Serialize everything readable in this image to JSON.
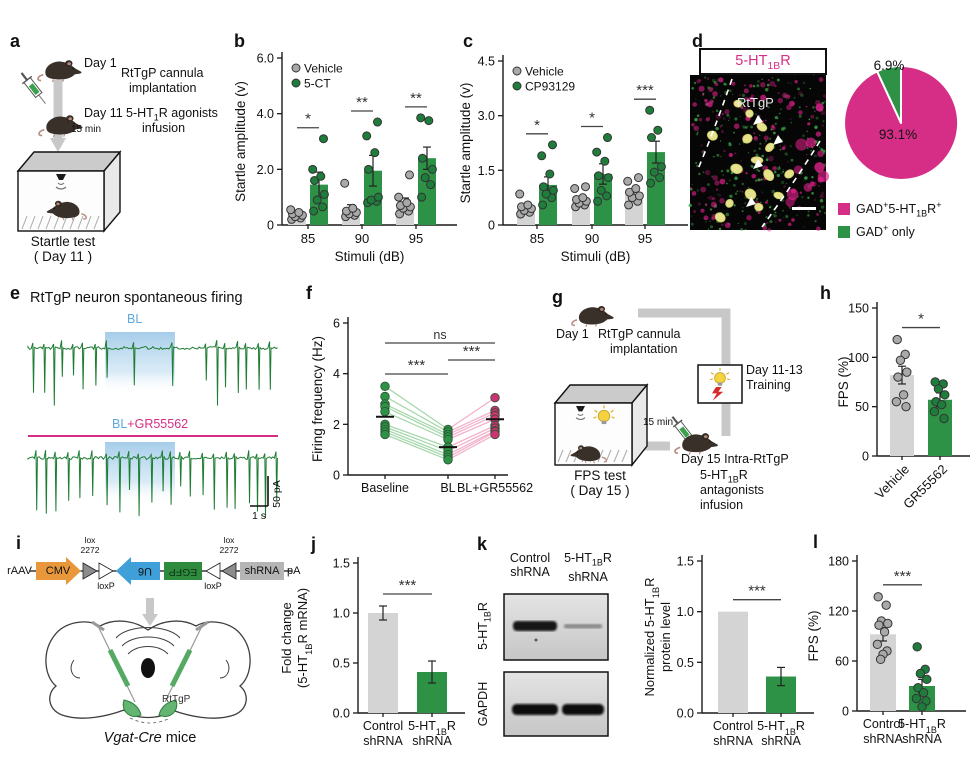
{
  "colors": {
    "magenta": "#d62e87",
    "green": "#2e9246",
    "gray_bar": "#d4d4d4",
    "gray_dot": "#a9a9a9",
    "green_dot": "#1f7d3c",
    "blue_label": "#5da9dd",
    "trace_green": "#1e7d33",
    "orange": "#e8973a",
    "blue_u6": "#3f9fd8",
    "egfp_green": "#2e8b3d",
    "axis": "#1a1a1a"
  },
  "panels": {
    "a": {
      "label": "a",
      "day1": "Day 1",
      "day1_desc_1": "RtTgP cannula",
      "day1_desc_2": "implantation",
      "day11": "Day 11",
      "day11_desc_1": "5-HT~1~R agonists",
      "day11_desc_2": "infusion",
      "delay": "15 min",
      "caption_1": "Startle test",
      "caption_2": "( Day 11 )"
    },
    "b": {
      "label": "b"
    },
    "c": {
      "label": "c"
    },
    "d": {
      "label": "d",
      "title": "5-HT~1B~R",
      "region": "RtTgP"
    },
    "e": {
      "label": "e"
    },
    "f": {
      "label": "f"
    },
    "g": {
      "label": "g",
      "day1": "Day 1",
      "day1_desc_1": "RtTgP cannula",
      "day1_desc_2": "implantation",
      "training_1": "Day 11-13",
      "training_2": "Training",
      "delay": "15 min",
      "day15": "Day 15",
      "day15_desc_1": "Intra-RtTgP",
      "day15_desc_2": "5-HT~1B~R",
      "day15_desc_3": "antagonists",
      "day15_desc_4": "infusion",
      "caption_1": "FPS test",
      "caption_2": "( Day 15 )"
    },
    "h": {
      "label": "h"
    },
    "i": {
      "label": "i",
      "raav": "rAAV",
      "cmv": "CMV",
      "lox_1": "lox",
      "lox_2": "2272",
      "loxp": "loxP",
      "u6": "U6",
      "egfp": "EGFP",
      "shrna": "shRNA",
      "pa": "pA",
      "region": "RtTgP",
      "caption": "*Vgat-Cre* mice"
    },
    "j": {
      "label": "j"
    },
    "k": {
      "label": "k",
      "col_1a": "Control",
      "col_1b": "shRNA",
      "col_2a": "5-HT~1B~R",
      "col_2b": "shRNA",
      "row_1": "5-HT~1B~R",
      "row_2": "GAPDH"
    },
    "l": {
      "label": "l"
    }
  },
  "chart_data": {
    "b": {
      "type": "bar",
      "variant": "grouped",
      "ylabel": "Startle amplitude (v)",
      "xlabel": "Stimuli (dB)",
      "categories": [
        "85",
        "90",
        "95"
      ],
      "ylim": [
        0,
        6
      ],
      "yticks": [
        {
          "v": 0,
          "label": "0"
        },
        {
          "v": 2,
          "label": "2.0"
        },
        {
          "v": 4,
          "label": "4.0"
        },
        {
          "v": 6,
          "label": "6.0"
        }
      ],
      "legend_pos": "top-left",
      "series": [
        {
          "name": "Vehicle",
          "bar_color": "#d4d4d4",
          "dot_color": "#a9a9a9",
          "values": [
            0.3,
            0.55,
            0.75
          ],
          "errors": [
            0.1,
            0.18,
            0.22
          ],
          "points": [
            [
              0.2,
              0.25,
              0.3,
              0.35,
              0.4,
              0.45,
              0.55
            ],
            [
              0.3,
              0.35,
              0.4,
              0.45,
              0.5,
              0.6,
              1.5
            ],
            [
              0.4,
              0.5,
              0.6,
              0.65,
              0.7,
              0.8,
              1.0,
              1.8
            ]
          ]
        },
        {
          "name": "5-CT",
          "bar_color": "#2e9246",
          "dot_color": "#1f7d3c",
          "values": [
            1.45,
            1.95,
            2.4
          ],
          "errors": [
            0.45,
            0.55,
            0.4
          ],
          "points": [
            [
              0.5,
              0.65,
              0.9,
              1.1,
              1.6,
              1.75,
              2.0,
              3.1
            ],
            [
              0.8,
              0.85,
              0.9,
              1.0,
              2.0,
              2.6,
              3.2,
              3.7
            ],
            [
              1.0,
              1.45,
              1.7,
              2.0,
              2.4,
              3.75,
              3.85
            ]
          ]
        }
      ],
      "sig": [
        "*",
        "**",
        "**"
      ]
    },
    "c": {
      "type": "bar",
      "variant": "grouped",
      "ylabel": "Startle amplitude (v)",
      "xlabel": "Stimuli (dB)",
      "categories": [
        "85",
        "90",
        "95"
      ],
      "ylim": [
        0,
        4.5
      ],
      "yticks": [
        {
          "v": 0,
          "label": "0"
        },
        {
          "v": 1.5,
          "label": "1.5"
        },
        {
          "v": 3,
          "label": "3.0"
        },
        {
          "v": 4.5,
          "label": "4.5"
        }
      ],
      "legend_pos": "top-left",
      "series": [
        {
          "name": "Vehicle",
          "bar_color": "#d4d4d4",
          "dot_color": "#a9a9a9",
          "values": [
            0.45,
            0.65,
            0.85
          ],
          "errors": [
            0.08,
            0.08,
            0.1
          ],
          "points": [
            [
              0.3,
              0.35,
              0.4,
              0.45,
              0.5,
              0.55,
              0.85
            ],
            [
              0.5,
              0.55,
              0.6,
              0.65,
              0.7,
              0.75,
              1.0,
              1.05
            ],
            [
              0.55,
              0.65,
              0.75,
              0.8,
              0.9,
              1.0,
              1.2,
              1.3
            ]
          ]
        },
        {
          "name": "CP93129",
          "bar_color": "#2e9246",
          "dot_color": "#1f7d3c",
          "values": [
            1.1,
            1.4,
            2.0
          ],
          "errors": [
            0.22,
            0.28,
            0.3
          ],
          "points": [
            [
              0.55,
              0.75,
              0.85,
              0.95,
              1.05,
              1.4,
              1.9,
              2.2
            ],
            [
              0.65,
              0.8,
              0.95,
              1.3,
              1.35,
              1.75,
              2.0,
              2.4
            ],
            [
              1.15,
              1.3,
              1.45,
              1.6,
              2.4,
              2.6,
              3.15
            ]
          ]
        }
      ],
      "sig": [
        "*",
        "*",
        "***"
      ]
    },
    "d": {
      "type": "pie",
      "slices": [
        {
          "label": "93.1%",
          "value": 93.1,
          "color": "#d62e87",
          "legend": "GAD^+^5-HT~1B~R^+^"
        },
        {
          "label": "6.9%",
          "value": 6.9,
          "color": "#2e9246",
          "legend": "GAD^+^ only"
        }
      ]
    },
    "e": {
      "type": "trace",
      "title": "RtTgP neuron spontaneous firing",
      "window_label": "BL",
      "window_label2_a": "BL",
      "window_label2_b": "+GR55562",
      "scalebar": {
        "v": "50 pA",
        "h": "1 s"
      }
    },
    "f": {
      "type": "paired-line",
      "ylabel": "Firing frequency (Hz)",
      "categories": [
        "Baseline",
        "BL",
        "BL+GR55562"
      ],
      "ylim": [
        0,
        6
      ],
      "yticks": [
        {
          "v": 0,
          "label": "0"
        },
        {
          "v": 2,
          "label": "2"
        },
        {
          "v": 4,
          "label": "4"
        },
        {
          "v": 6,
          "label": "6"
        }
      ],
      "cells": [
        [
          3.5,
          1.8,
          3.05
        ],
        [
          3.1,
          1.7,
          2.55
        ],
        [
          2.8,
          1.6,
          2.45
        ],
        [
          2.7,
          1.5,
          2.35
        ],
        [
          2.5,
          1.4,
          2.2
        ],
        [
          2.0,
          1.1,
          1.95
        ],
        [
          1.9,
          0.95,
          1.85
        ],
        [
          1.8,
          0.8,
          1.75
        ],
        [
          1.7,
          0.7,
          1.7
        ],
        [
          1.6,
          0.6,
          1.6
        ]
      ],
      "means": [
        2.3,
        1.1,
        2.2
      ],
      "dot_colors": [
        "#2e9246",
        "#2e9246",
        "#cc3375"
      ],
      "line_colors": [
        "#9dd4a4",
        "#f2aac6"
      ],
      "sig": [
        {
          "a": 0,
          "b": 1,
          "label": "***"
        },
        {
          "a": 1,
          "b": 2,
          "label": "***"
        },
        {
          "a": 0,
          "b": 2,
          "label": "ns"
        }
      ]
    },
    "h": {
      "type": "bar",
      "ylabel": "FPS (%)",
      "ylim": [
        0,
        150
      ],
      "yticks": [
        {
          "v": 0,
          "label": "0"
        },
        {
          "v": 50,
          "label": "50"
        },
        {
          "v": 100,
          "label": "100"
        },
        {
          "v": 150,
          "label": "150"
        }
      ],
      "categories": [
        "Vehicle",
        "GR55562"
      ],
      "rotate_labels": true,
      "values": [
        82,
        57
      ],
      "errors": [
        9,
        7
      ],
      "bar_colors": [
        "#d4d4d4",
        "#2e9246"
      ],
      "dot_colors": [
        "#a9a9a9",
        "#1f7d3c"
      ],
      "points": [
        [
          118,
          103,
          97,
          85,
          80,
          62,
          55,
          50
        ],
        [
          75,
          73,
          68,
          62,
          55,
          52,
          45,
          38
        ]
      ],
      "sig": "*"
    },
    "j": {
      "type": "bar",
      "ylabel_lines": [
        "Fold change",
        "(5-HT~1B~R  mRNA)"
      ],
      "ylim": [
        0,
        1.5
      ],
      "yticks": [
        {
          "v": 0,
          "label": "0.0"
        },
        {
          "v": 0.5,
          "label": "0.5"
        },
        {
          "v": 1,
          "label": "1.0"
        },
        {
          "v": 1.5,
          "label": "1.5"
        }
      ],
      "categories": [
        [
          "Control",
          "shRNA"
        ],
        [
          "5-HT~1B~R",
          "shRNA"
        ]
      ],
      "values": [
        1.0,
        0.41
      ],
      "errors": [
        0.07,
        0.11
      ],
      "bar_colors": [
        "#d4d4d4",
        "#2e9246"
      ],
      "sig": "***"
    },
    "k": {
      "type": "bar",
      "ylabel_lines": [
        "Normalized 5-HT~1B~R",
        "protein level"
      ],
      "ylim": [
        0,
        1.5
      ],
      "yticks": [
        {
          "v": 0,
          "label": "0.0"
        },
        {
          "v": 0.5,
          "label": "0.5"
        },
        {
          "v": 1,
          "label": "1.0"
        },
        {
          "v": 1.5,
          "label": "1.5"
        }
      ],
      "categories": [
        [
          "Control",
          "shRNA"
        ],
        [
          "5-HT~1B~R",
          "shRNA"
        ]
      ],
      "values": [
        1.0,
        0.36
      ],
      "errors": [
        0,
        0.09
      ],
      "bar_colors": [
        "#d4d4d4",
        "#2e9246"
      ],
      "sig": "***"
    },
    "l": {
      "type": "bar",
      "ylabel": "FPS (%)",
      "ylim": [
        0,
        180
      ],
      "yticks": [
        {
          "v": 0,
          "label": "0"
        },
        {
          "v": 60,
          "label": "60"
        },
        {
          "v": 120,
          "label": "120"
        },
        {
          "v": 180,
          "label": "180"
        }
      ],
      "categories": [
        [
          "Control",
          "shRNA"
        ],
        [
          "5-HT~1B~R",
          "shRNA"
        ]
      ],
      "values": [
        92,
        30
      ],
      "errors": [
        8,
        8
      ],
      "bar_colors": [
        "#d4d4d4",
        "#2e9246"
      ],
      "dot_colors": [
        "#a9a9a9",
        "#1f7d3c"
      ],
      "points": [
        [
          137,
          127,
          108,
          105,
          103,
          95,
          80,
          72,
          68,
          62
        ],
        [
          77,
          50,
          45,
          38,
          28,
          22,
          15,
          12,
          5
        ]
      ],
      "sig": "***"
    }
  }
}
